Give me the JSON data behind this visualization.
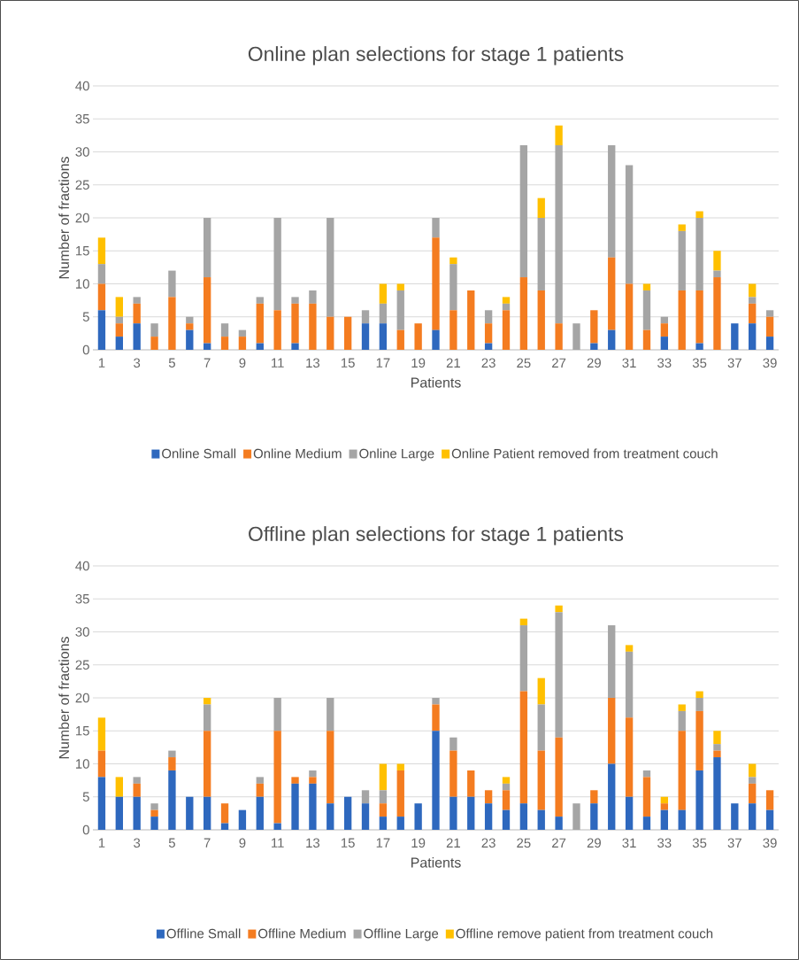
{
  "chart_data": [
    {
      "type": "bar",
      "stacked": true,
      "title": "Online plan selections for stage 1 patients",
      "xlabel": "Patients",
      "ylabel": "Number of fractions",
      "categories": [
        "1",
        null,
        "3",
        null,
        "5",
        null,
        "7",
        null,
        "9",
        null,
        "11",
        null,
        "13",
        null,
        "15",
        null,
        "17",
        null,
        "19",
        null,
        "21",
        null,
        "23",
        null,
        "25",
        null,
        "27",
        null,
        "29",
        null,
        "31",
        null,
        "33",
        null,
        "35",
        null,
        "37",
        null,
        "39"
      ],
      "series": [
        {
          "name": "Online Small",
          "color": "#2e68be",
          "values": [
            6,
            2,
            4,
            0,
            0,
            3,
            1,
            0,
            0,
            1,
            0,
            1,
            0,
            0,
            0,
            4,
            4,
            0,
            0,
            3,
            0,
            0,
            1,
            0,
            0,
            0,
            0,
            0,
            1,
            3,
            0,
            0,
            2,
            0,
            1,
            0,
            4,
            4,
            2
          ]
        },
        {
          "name": "Online Medium",
          "color": "#f47c20",
          "values": [
            4,
            2,
            3,
            2,
            8,
            1,
            10,
            2,
            2,
            6,
            6,
            6,
            7,
            5,
            5,
            0,
            0,
            3,
            4,
            14,
            6,
            9,
            3,
            6,
            11,
            9,
            4,
            0,
            5,
            11,
            10,
            3,
            2,
            9,
            8,
            11,
            0,
            3,
            3
          ]
        },
        {
          "name": "Online Large",
          "color": "#a5a5a5",
          "values": [
            3,
            1,
            1,
            2,
            4,
            1,
            9,
            2,
            1,
            1,
            14,
            1,
            2,
            15,
            0,
            2,
            3,
            6,
            0,
            3,
            7,
            0,
            2,
            1,
            20,
            11,
            27,
            4,
            0,
            17,
            18,
            6,
            1,
            9,
            11,
            1,
            0,
            1,
            1
          ]
        },
        {
          "name": "Online Patient removed from treatment couch",
          "color": "#ffc000",
          "values": [
            4,
            3,
            0,
            0,
            0,
            0,
            0,
            0,
            0,
            0,
            0,
            0,
            0,
            0,
            0,
            0,
            3,
            1,
            0,
            0,
            1,
            0,
            0,
            1,
            0,
            3,
            3,
            0,
            0,
            0,
            0,
            1,
            0,
            1,
            1,
            3,
            0,
            2,
            0
          ]
        }
      ],
      "ylim": [
        0,
        40
      ],
      "yticks": [
        0,
        5,
        10,
        15,
        20,
        25,
        30,
        35,
        40
      ],
      "grid": "y",
      "legend": "bottom"
    },
    {
      "type": "bar",
      "stacked": true,
      "title": "Offline plan selections for stage 1 patients",
      "xlabel": "Patients",
      "ylabel": "Number of fractions",
      "categories": [
        "1",
        null,
        "3",
        null,
        "5",
        null,
        "7",
        null,
        "9",
        null,
        "11",
        null,
        "13",
        null,
        "15",
        null,
        "17",
        null,
        "19",
        null,
        "21",
        null,
        "23",
        null,
        "25",
        null,
        "27",
        null,
        "29",
        null,
        "31",
        null,
        "33",
        null,
        "35",
        null,
        "37",
        null,
        "39"
      ],
      "series": [
        {
          "name": "Offline Small",
          "color": "#2e68be",
          "values": [
            8,
            5,
            5,
            2,
            9,
            5,
            5,
            1,
            3,
            5,
            1,
            7,
            7,
            4,
            5,
            4,
            2,
            2,
            4,
            15,
            5,
            5,
            4,
            3,
            4,
            3,
            2,
            0,
            4,
            10,
            5,
            2,
            3,
            3,
            9,
            11,
            4,
            4,
            3
          ]
        },
        {
          "name": "Offline Medium",
          "color": "#f47c20",
          "values": [
            4,
            0,
            2,
            1,
            2,
            0,
            10,
            3,
            0,
            2,
            14,
            1,
            1,
            11,
            0,
            0,
            2,
            7,
            0,
            4,
            7,
            4,
            2,
            3,
            17,
            9,
            12,
            0,
            2,
            10,
            12,
            6,
            1,
            12,
            9,
            1,
            0,
            3,
            3
          ]
        },
        {
          "name": "Offline Large",
          "color": "#a5a5a5",
          "values": [
            0,
            0,
            1,
            1,
            1,
            0,
            4,
            0,
            0,
            1,
            5,
            0,
            1,
            5,
            0,
            2,
            2,
            0,
            0,
            1,
            2,
            0,
            0,
            1,
            10,
            7,
            19,
            4,
            0,
            11,
            10,
            1,
            0,
            3,
            2,
            1,
            0,
            1,
            0
          ]
        },
        {
          "name": "Offline remove patient from treatment couch",
          "color": "#ffc000",
          "values": [
            5,
            3,
            0,
            0,
            0,
            0,
            1,
            0,
            0,
            0,
            0,
            0,
            0,
            0,
            0,
            0,
            4,
            1,
            0,
            0,
            0,
            0,
            0,
            1,
            1,
            4,
            1,
            0,
            0,
            0,
            1,
            0,
            1,
            1,
            1,
            2,
            0,
            2,
            0
          ]
        }
      ],
      "ylim": [
        0,
        40
      ],
      "yticks": [
        0,
        5,
        10,
        15,
        20,
        25,
        30,
        35,
        40
      ],
      "grid": "y",
      "legend": "bottom"
    }
  ]
}
